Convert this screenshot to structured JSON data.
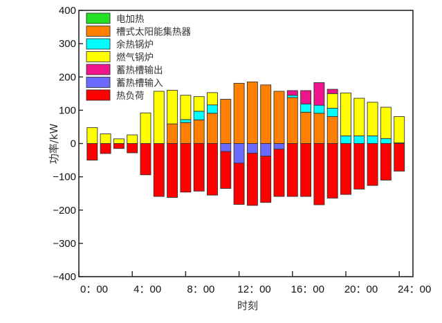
{
  "chart_data": {
    "type": "bar",
    "stacked": true,
    "xlabel": "时刻",
    "ylabel": "功率/kW",
    "ylim": [
      -400,
      400
    ],
    "yticks": [
      400,
      300,
      200,
      100,
      0,
      -100,
      -200,
      -300,
      -400
    ],
    "ytick_labels": [
      "400",
      "300",
      "200",
      "100",
      "0",
      "−100",
      "−200",
      "−300",
      "−400"
    ],
    "xticks": [
      0,
      4,
      8,
      12,
      16,
      20,
      24
    ],
    "xtick_labels": [
      "0：00",
      "4：00",
      "8：00",
      "12：00",
      "16：00",
      "20：00",
      "24：00"
    ],
    "x": [
      1,
      2,
      3,
      4,
      5,
      6,
      7,
      8,
      9,
      10,
      11,
      12,
      13,
      14,
      15,
      16,
      17,
      18,
      19,
      20,
      21,
      22,
      23,
      24
    ],
    "legend_position": "top-left",
    "series": [
      {
        "name": "电加热",
        "color": "#22e022",
        "direction": "positive",
        "values": [
          0,
          0,
          0,
          0,
          0,
          0,
          0,
          0,
          0,
          0,
          0,
          0,
          0,
          0,
          0,
          0,
          0,
          0,
          0,
          0,
          0,
          0,
          0,
          2
        ]
      },
      {
        "name": "槽式太阳能集热器",
        "color": "#ff8000",
        "direction": "positive",
        "values": [
          0,
          0,
          0,
          0,
          0,
          0,
          59,
          63,
          71,
          91,
          133,
          181,
          185,
          176,
          157,
          138,
          94,
          91,
          81,
          0,
          0,
          0,
          0,
          0
        ]
      },
      {
        "name": "余热锅炉",
        "color": "#00ffff",
        "direction": "positive",
        "values": [
          0,
          0,
          0,
          0,
          0,
          0,
          0,
          9,
          26,
          25,
          0,
          0,
          0,
          0,
          0,
          7,
          25,
          24,
          25,
          23,
          23,
          23,
          15,
          0
        ]
      },
      {
        "name": "燃气锅炉",
        "color": "#ffff00",
        "direction": "positive",
        "values": [
          48,
          29,
          14,
          26,
          92,
          157,
          101,
          73,
          44,
          37,
          0,
          0,
          0,
          0,
          0,
          0,
          0,
          0,
          44,
          129,
          113,
          101,
          94,
          79
        ]
      },
      {
        "name": "蓄热槽输出",
        "color": "#f0148c",
        "direction": "positive",
        "values": [
          0,
          0,
          0,
          0,
          0,
          0,
          0,
          0,
          0,
          0,
          0,
          0,
          0,
          0,
          0,
          14,
          40,
          68,
          13,
          0,
          0,
          0,
          0,
          0
        ]
      },
      {
        "name": "蓄热槽输入",
        "color": "#6a6aff",
        "direction": "negative",
        "values": [
          0,
          0,
          0,
          0,
          0,
          0,
          0,
          0,
          0,
          0,
          -24,
          -59,
          -29,
          -38,
          -17,
          0,
          0,
          0,
          0,
          0,
          0,
          0,
          0,
          0
        ]
      },
      {
        "name": "热负荷",
        "color": "#ff0000",
        "direction": "negative",
        "values": [
          -50,
          -30,
          -15,
          -28,
          -94,
          -159,
          -162,
          -146,
          -143,
          -155,
          -111,
          -124,
          -157,
          -139,
          -142,
          -159,
          -159,
          -184,
          -164,
          -153,
          -137,
          -126,
          -110,
          -83
        ]
      }
    ]
  }
}
